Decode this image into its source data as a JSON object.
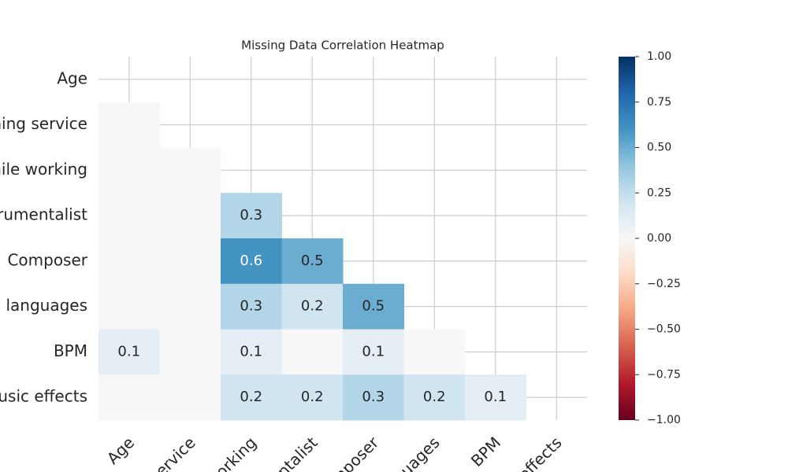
{
  "chart_data": {
    "type": "heatmap",
    "title": "Missing Data Correlation Heatmap",
    "rows": [
      "Age",
      "ming service",
      "hile working",
      "trumentalist",
      "Composer",
      "n languages",
      "BPM",
      "usic effects"
    ],
    "columns": [
      "Age",
      "service",
      "working",
      "ntalist",
      "mposer",
      "nguages",
      "BPM",
      "effects"
    ],
    "values": [
      [],
      [
        0
      ],
      [
        0,
        0
      ],
      [
        0,
        0,
        0.3
      ],
      [
        0,
        0,
        0.6,
        0.5
      ],
      [
        0,
        0,
        0.3,
        0.2,
        0.5
      ],
      [
        0.1,
        0,
        0.1,
        0,
        0.1,
        0
      ],
      [
        0,
        0,
        0.2,
        0.2,
        0.3,
        0.2,
        0.1
      ]
    ],
    "colormap": "RdBu",
    "vlim": [
      -1,
      1
    ],
    "colorbar_ticks": [
      {
        "value": -1,
        "label": "−1.00"
      },
      {
        "value": -0.75,
        "label": "−0.75"
      },
      {
        "value": -0.5,
        "label": "−0.50"
      },
      {
        "value": -0.25,
        "label": "−0.25"
      },
      {
        "value": 0,
        "label": "0.00"
      },
      {
        "value": 0.25,
        "label": "0.25"
      },
      {
        "value": 0.5,
        "label": "0.50"
      },
      {
        "value": 0.75,
        "label": "0.75"
      },
      {
        "value": 1,
        "label": "1.00"
      }
    ],
    "grid": true
  }
}
